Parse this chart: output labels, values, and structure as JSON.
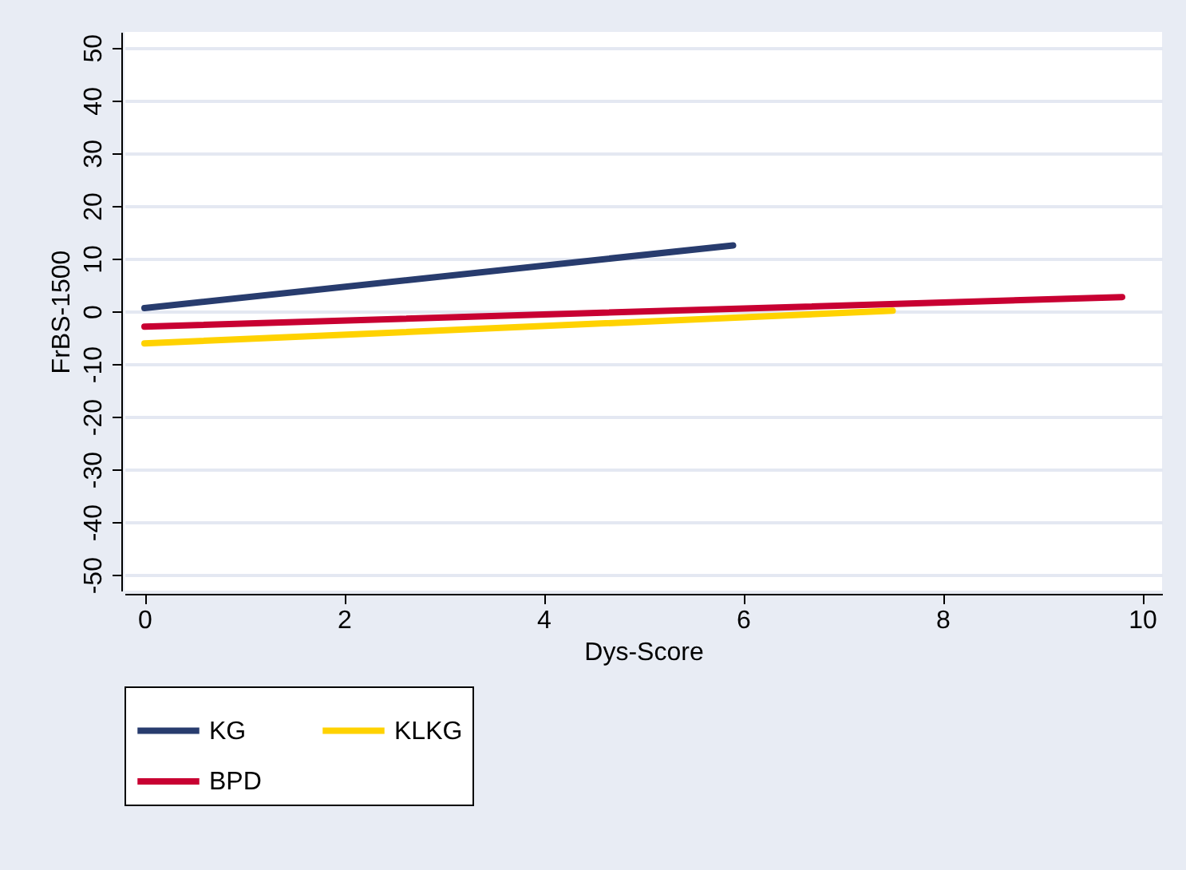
{
  "chart_data": {
    "type": "line",
    "xlabel": "Dys-Score",
    "ylabel": "FrBS-1500",
    "xlim": [
      -0.2,
      10.2
    ],
    "xticks": [
      0,
      2,
      4,
      6,
      8,
      10
    ],
    "ylim": [
      -53,
      53
    ],
    "yticks": [
      -50,
      -40,
      -30,
      -20,
      -10,
      0,
      10,
      20,
      30,
      40,
      50
    ],
    "grid": "y",
    "legend": "bottom",
    "series": [
      {
        "name": "KG",
        "color": "#283c6e",
        "x": [
          0,
          5.9
        ],
        "values": [
          0.6,
          12.5
        ]
      },
      {
        "name": "KLKG",
        "color": "#ffd200",
        "x": [
          0,
          7.5
        ],
        "values": [
          -6.1,
          0.1
        ]
      },
      {
        "name": "BPD",
        "color": "#c80032",
        "x": [
          0,
          9.8
        ],
        "values": [
          -2.9,
          2.7
        ]
      }
    ]
  }
}
